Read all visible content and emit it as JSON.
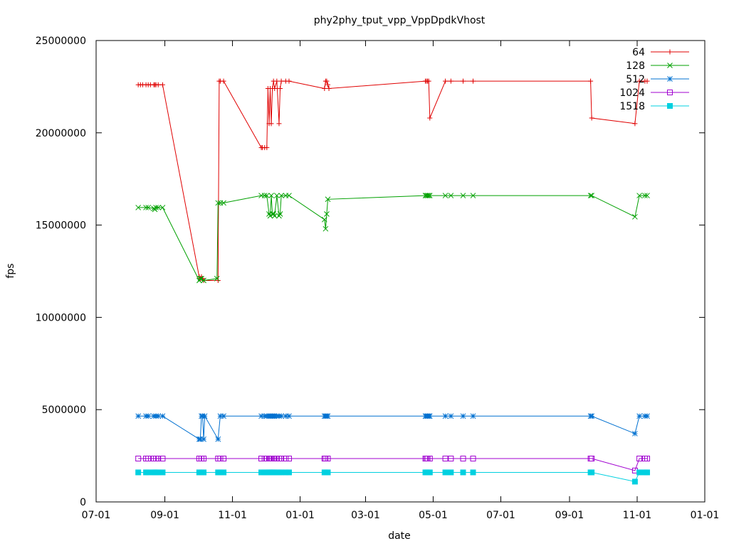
{
  "chart_data": {
    "type": "line",
    "title": "phy2phy_tput_vpp_VppDpdkVhost",
    "xlabel": "date",
    "ylabel": "fps",
    "ylim": [
      0,
      25000000
    ],
    "xlim": [
      "2016-07-01",
      "2018-01-01"
    ],
    "x_ticks": [
      {
        "date": "2016-07-01",
        "label": "07-01"
      },
      {
        "date": "2016-09-01",
        "label": "09-01"
      },
      {
        "date": "2016-11-01",
        "label": "11-01"
      },
      {
        "date": "2017-01-01",
        "label": "01-01"
      },
      {
        "date": "2017-03-01",
        "label": "03-01"
      },
      {
        "date": "2017-05-01",
        "label": "05-01"
      },
      {
        "date": "2017-07-01",
        "label": "07-01"
      },
      {
        "date": "2017-09-01",
        "label": "09-01"
      },
      {
        "date": "2017-11-01",
        "label": "11-01"
      },
      {
        "date": "2018-01-01",
        "label": "01-01"
      }
    ],
    "y_ticks": [
      {
        "value": 0,
        "label": "0"
      },
      {
        "value": 5000000,
        "label": "5000000"
      },
      {
        "value": 10000000,
        "label": "10000000"
      },
      {
        "value": 15000000,
        "label": "15000000"
      },
      {
        "value": 20000000,
        "label": "20000000"
      },
      {
        "value": 25000000,
        "label": "25000000"
      }
    ],
    "grid": false,
    "legend_position": "top-right",
    "series": [
      {
        "name": "64",
        "color": "#e00000",
        "marker": "plus",
        "points": [
          [
            "2016-08-08",
            22600000
          ],
          [
            "2016-08-10",
            22600000
          ],
          [
            "2016-08-12",
            22600000
          ],
          [
            "2016-08-15",
            22600000
          ],
          [
            "2016-08-17",
            22600000
          ],
          [
            "2016-08-19",
            22600000
          ],
          [
            "2016-08-22",
            22600000
          ],
          [
            "2016-08-23",
            22600000
          ],
          [
            "2016-08-24",
            22600000
          ],
          [
            "2016-08-26",
            22600000
          ],
          [
            "2016-08-30",
            22600000
          ],
          [
            "2016-10-02",
            12200000
          ],
          [
            "2016-10-03",
            12100000
          ],
          [
            "2016-10-04",
            12200000
          ],
          [
            "2016-10-05",
            12100000
          ],
          [
            "2016-10-06",
            12000000
          ],
          [
            "2016-10-19",
            12000000
          ],
          [
            "2016-10-20",
            22800000
          ],
          [
            "2016-10-21",
            22800000
          ],
          [
            "2016-10-24",
            22800000
          ],
          [
            "2016-11-27",
            19200000
          ],
          [
            "2016-11-28",
            19200000
          ],
          [
            "2016-11-30",
            19200000
          ],
          [
            "2016-12-02",
            19200000
          ],
          [
            "2016-12-03",
            22400000
          ],
          [
            "2016-12-04",
            20500000
          ],
          [
            "2016-12-05",
            22400000
          ],
          [
            "2016-12-06",
            20500000
          ],
          [
            "2016-12-07",
            22400000
          ],
          [
            "2016-12-08",
            22800000
          ],
          [
            "2016-12-09",
            22400000
          ],
          [
            "2016-12-11",
            22800000
          ],
          [
            "2016-12-13",
            20500000
          ],
          [
            "2016-12-14",
            22400000
          ],
          [
            "2016-12-15",
            22800000
          ],
          [
            "2016-12-19",
            22800000
          ],
          [
            "2016-12-22",
            22800000
          ],
          [
            "2017-01-23",
            22400000
          ],
          [
            "2017-01-24",
            22800000
          ],
          [
            "2017-01-25",
            22800000
          ],
          [
            "2017-01-26",
            22600000
          ],
          [
            "2017-01-27",
            22400000
          ],
          [
            "2017-04-24",
            22800000
          ],
          [
            "2017-04-25",
            22800000
          ],
          [
            "2017-04-26",
            22800000
          ],
          [
            "2017-04-27",
            22800000
          ],
          [
            "2017-04-28",
            20800000
          ],
          [
            "2017-05-12",
            22800000
          ],
          [
            "2017-05-17",
            22800000
          ],
          [
            "2017-05-28",
            22800000
          ],
          [
            "2017-06-06",
            22800000
          ],
          [
            "2017-09-20",
            22800000
          ],
          [
            "2017-09-21",
            20800000
          ],
          [
            "2017-10-30",
            20500000
          ],
          [
            "2017-11-03",
            22800000
          ],
          [
            "2017-11-08",
            22800000
          ],
          [
            "2017-11-10",
            22800000
          ]
        ]
      },
      {
        "name": "128",
        "color": "#00a000",
        "marker": "cross",
        "points": [
          [
            "2016-08-08",
            15950000
          ],
          [
            "2016-08-15",
            15950000
          ],
          [
            "2016-08-17",
            15950000
          ],
          [
            "2016-08-22",
            15900000
          ],
          [
            "2016-08-23",
            15850000
          ],
          [
            "2016-08-24",
            15950000
          ],
          [
            "2016-08-26",
            15950000
          ],
          [
            "2016-08-30",
            15950000
          ],
          [
            "2016-10-02",
            12000000
          ],
          [
            "2016-10-03",
            12100000
          ],
          [
            "2016-10-04",
            12100000
          ],
          [
            "2016-10-06",
            12000000
          ],
          [
            "2016-10-18",
            12100000
          ],
          [
            "2016-10-19",
            16200000
          ],
          [
            "2016-10-21",
            16200000
          ],
          [
            "2016-10-24",
            16200000
          ],
          [
            "2016-11-27",
            16600000
          ],
          [
            "2016-11-30",
            16600000
          ],
          [
            "2016-12-02",
            16600000
          ],
          [
            "2016-12-04",
            15600000
          ],
          [
            "2016-12-05",
            15500000
          ],
          [
            "2016-12-06",
            16600000
          ],
          [
            "2016-12-07",
            15600000
          ],
          [
            "2016-12-08",
            15600000
          ],
          [
            "2016-12-09",
            15500000
          ],
          [
            "2016-12-11",
            16600000
          ],
          [
            "2016-12-13",
            15500000
          ],
          [
            "2016-12-14",
            15600000
          ],
          [
            "2016-12-15",
            16600000
          ],
          [
            "2016-12-19",
            16600000
          ],
          [
            "2016-12-22",
            16600000
          ],
          [
            "2017-01-23",
            15300000
          ],
          [
            "2017-01-24",
            14800000
          ],
          [
            "2017-01-25",
            15600000
          ],
          [
            "2017-01-26",
            16400000
          ],
          [
            "2017-04-24",
            16600000
          ],
          [
            "2017-04-25",
            16600000
          ],
          [
            "2017-04-26",
            16600000
          ],
          [
            "2017-04-27",
            16600000
          ],
          [
            "2017-04-28",
            16600000
          ],
          [
            "2017-05-12",
            16600000
          ],
          [
            "2017-05-17",
            16600000
          ],
          [
            "2017-05-28",
            16600000
          ],
          [
            "2017-06-06",
            16600000
          ],
          [
            "2017-09-20",
            16600000
          ],
          [
            "2017-09-21",
            16600000
          ],
          [
            "2017-10-30",
            15450000
          ],
          [
            "2017-11-03",
            16600000
          ],
          [
            "2017-11-08",
            16600000
          ],
          [
            "2017-11-10",
            16600000
          ]
        ]
      },
      {
        "name": "512",
        "color": "#0070d0",
        "marker": "star",
        "points": [
          [
            "2016-08-08",
            4650000
          ],
          [
            "2016-08-15",
            4650000
          ],
          [
            "2016-08-17",
            4650000
          ],
          [
            "2016-08-22",
            4650000
          ],
          [
            "2016-08-24",
            4650000
          ],
          [
            "2016-08-26",
            4650000
          ],
          [
            "2016-08-30",
            4650000
          ],
          [
            "2016-10-02",
            3400000
          ],
          [
            "2016-10-03",
            3400000
          ],
          [
            "2016-10-04",
            4650000
          ],
          [
            "2016-10-05",
            4650000
          ],
          [
            "2016-10-06",
            3400000
          ],
          [
            "2016-10-07",
            4650000
          ],
          [
            "2016-10-19",
            3400000
          ],
          [
            "2016-10-21",
            4650000
          ],
          [
            "2016-10-24",
            4650000
          ],
          [
            "2016-11-27",
            4650000
          ],
          [
            "2016-11-30",
            4650000
          ],
          [
            "2016-12-02",
            4650000
          ],
          [
            "2016-12-04",
            4650000
          ],
          [
            "2016-12-05",
            4650000
          ],
          [
            "2016-12-06",
            4650000
          ],
          [
            "2016-12-07",
            4650000
          ],
          [
            "2016-12-08",
            4650000
          ],
          [
            "2016-12-09",
            4650000
          ],
          [
            "2016-12-11",
            4650000
          ],
          [
            "2016-12-13",
            4650000
          ],
          [
            "2016-12-15",
            4650000
          ],
          [
            "2016-12-19",
            4650000
          ],
          [
            "2016-12-22",
            4650000
          ],
          [
            "2017-01-23",
            4650000
          ],
          [
            "2017-01-24",
            4650000
          ],
          [
            "2017-01-25",
            4650000
          ],
          [
            "2017-01-26",
            4650000
          ],
          [
            "2017-04-24",
            4650000
          ],
          [
            "2017-04-25",
            4650000
          ],
          [
            "2017-04-26",
            4650000
          ],
          [
            "2017-04-27",
            4650000
          ],
          [
            "2017-04-28",
            4650000
          ],
          [
            "2017-05-12",
            4650000
          ],
          [
            "2017-05-17",
            4650000
          ],
          [
            "2017-05-28",
            4650000
          ],
          [
            "2017-06-06",
            4650000
          ],
          [
            "2017-09-20",
            4650000
          ],
          [
            "2017-09-21",
            4650000
          ],
          [
            "2017-10-30",
            3700000
          ],
          [
            "2017-11-03",
            4650000
          ],
          [
            "2017-11-08",
            4650000
          ],
          [
            "2017-11-10",
            4650000
          ]
        ]
      },
      {
        "name": "1024",
        "color": "#a000d0",
        "marker": "square",
        "points": [
          [
            "2016-08-08",
            2350000
          ],
          [
            "2016-08-15",
            2350000
          ],
          [
            "2016-08-17",
            2350000
          ],
          [
            "2016-08-22",
            2350000
          ],
          [
            "2016-08-24",
            2350000
          ],
          [
            "2016-08-26",
            2350000
          ],
          [
            "2016-08-30",
            2350000
          ],
          [
            "2016-10-02",
            2350000
          ],
          [
            "2016-10-04",
            2350000
          ],
          [
            "2016-10-06",
            2350000
          ],
          [
            "2016-10-19",
            2350000
          ],
          [
            "2016-10-21",
            2350000
          ],
          [
            "2016-10-24",
            2350000
          ],
          [
            "2016-11-27",
            2350000
          ],
          [
            "2016-11-30",
            2350000
          ],
          [
            "2016-12-02",
            2350000
          ],
          [
            "2016-12-04",
            2350000
          ],
          [
            "2016-12-05",
            2350000
          ],
          [
            "2016-12-06",
            2350000
          ],
          [
            "2016-12-08",
            2350000
          ],
          [
            "2016-12-09",
            2350000
          ],
          [
            "2016-12-11",
            2350000
          ],
          [
            "2016-12-13",
            2350000
          ],
          [
            "2016-12-15",
            2350000
          ],
          [
            "2016-12-19",
            2350000
          ],
          [
            "2016-12-22",
            2350000
          ],
          [
            "2017-01-23",
            2350000
          ],
          [
            "2017-01-24",
            2350000
          ],
          [
            "2017-01-26",
            2350000
          ],
          [
            "2017-04-24",
            2350000
          ],
          [
            "2017-04-25",
            2350000
          ],
          [
            "2017-04-26",
            2350000
          ],
          [
            "2017-04-28",
            2350000
          ],
          [
            "2017-05-12",
            2350000
          ],
          [
            "2017-05-17",
            2350000
          ],
          [
            "2017-05-28",
            2350000
          ],
          [
            "2017-06-06",
            2350000
          ],
          [
            "2017-09-20",
            2350000
          ],
          [
            "2017-09-21",
            2350000
          ],
          [
            "2017-10-30",
            1700000
          ],
          [
            "2017-11-03",
            2350000
          ],
          [
            "2017-11-08",
            2350000
          ],
          [
            "2017-11-10",
            2350000
          ]
        ]
      },
      {
        "name": "1518",
        "color": "#00d0e0",
        "marker": "filled-square",
        "points": [
          [
            "2016-08-08",
            1600000
          ],
          [
            "2016-08-15",
            1600000
          ],
          [
            "2016-08-17",
            1600000
          ],
          [
            "2016-08-22",
            1600000
          ],
          [
            "2016-08-23",
            1600000
          ],
          [
            "2016-08-24",
            1600000
          ],
          [
            "2016-08-26",
            1600000
          ],
          [
            "2016-08-30",
            1600000
          ],
          [
            "2016-10-02",
            1600000
          ],
          [
            "2016-10-04",
            1600000
          ],
          [
            "2016-10-06",
            1600000
          ],
          [
            "2016-10-19",
            1600000
          ],
          [
            "2016-10-21",
            1600000
          ],
          [
            "2016-10-24",
            1600000
          ],
          [
            "2016-11-27",
            1600000
          ],
          [
            "2016-11-30",
            1600000
          ],
          [
            "2016-12-02",
            1600000
          ],
          [
            "2016-12-04",
            1600000
          ],
          [
            "2016-12-05",
            1600000
          ],
          [
            "2016-12-06",
            1600000
          ],
          [
            "2016-12-07",
            1600000
          ],
          [
            "2016-12-08",
            1600000
          ],
          [
            "2016-12-09",
            1600000
          ],
          [
            "2016-12-11",
            1600000
          ],
          [
            "2016-12-13",
            1600000
          ],
          [
            "2016-12-15",
            1600000
          ],
          [
            "2016-12-19",
            1600000
          ],
          [
            "2016-12-22",
            1600000
          ],
          [
            "2017-01-23",
            1600000
          ],
          [
            "2017-01-24",
            1600000
          ],
          [
            "2017-01-26",
            1600000
          ],
          [
            "2017-04-24",
            1600000
          ],
          [
            "2017-04-25",
            1600000
          ],
          [
            "2017-04-26",
            1600000
          ],
          [
            "2017-04-28",
            1600000
          ],
          [
            "2017-05-12",
            1600000
          ],
          [
            "2017-05-17",
            1600000
          ],
          [
            "2017-05-28",
            1600000
          ],
          [
            "2017-06-06",
            1600000
          ],
          [
            "2017-09-20",
            1600000
          ],
          [
            "2017-09-21",
            1600000
          ],
          [
            "2017-10-30",
            1100000
          ],
          [
            "2017-11-03",
            1600000
          ],
          [
            "2017-11-08",
            1600000
          ],
          [
            "2017-11-10",
            1600000
          ]
        ]
      }
    ]
  }
}
